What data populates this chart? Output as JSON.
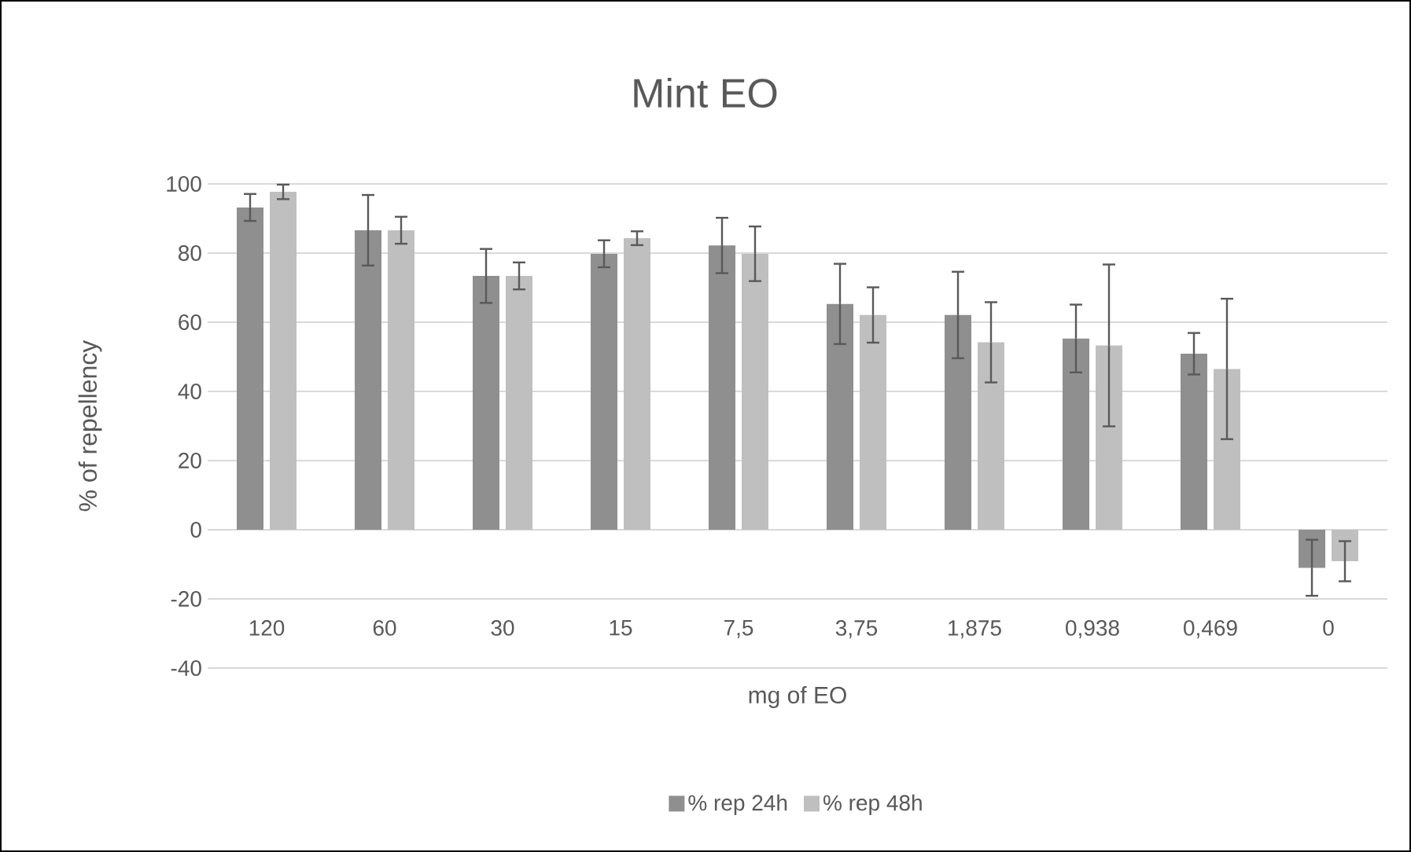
{
  "chart_data": {
    "type": "bar",
    "title": "Mint EO",
    "xlabel": "mg of EO",
    "ylabel": "% of repellency",
    "categories": [
      "120",
      "60",
      "30",
      "15",
      "7,5",
      "3,75",
      "1,875",
      "0,938",
      "0,469",
      "0"
    ],
    "series": [
      {
        "name": "% rep 24h",
        "color": "#8f8f8f",
        "values": [
          93.2,
          86.6,
          73.4,
          79.8,
          82.2,
          65.3,
          62.1,
          55.3,
          50.9,
          -11.0
        ],
        "errors": [
          3.9,
          10.2,
          7.8,
          3.9,
          8.0,
          11.6,
          12.5,
          9.8,
          6.0,
          8.1
        ]
      },
      {
        "name": "% rep 48h",
        "color": "#bfbfbf",
        "values": [
          97.7,
          86.6,
          73.4,
          84.3,
          79.8,
          62.1,
          54.2,
          53.3,
          46.5,
          -9.1
        ],
        "errors": [
          2.1,
          3.9,
          3.9,
          2.0,
          7.9,
          8.0,
          11.6,
          23.4,
          20.3,
          5.8
        ]
      }
    ],
    "ylim": [
      -40,
      100
    ],
    "yticks": [
      -40,
      -20,
      0,
      20,
      40,
      60,
      80,
      100
    ],
    "grid": "y",
    "legend": "bottom"
  }
}
